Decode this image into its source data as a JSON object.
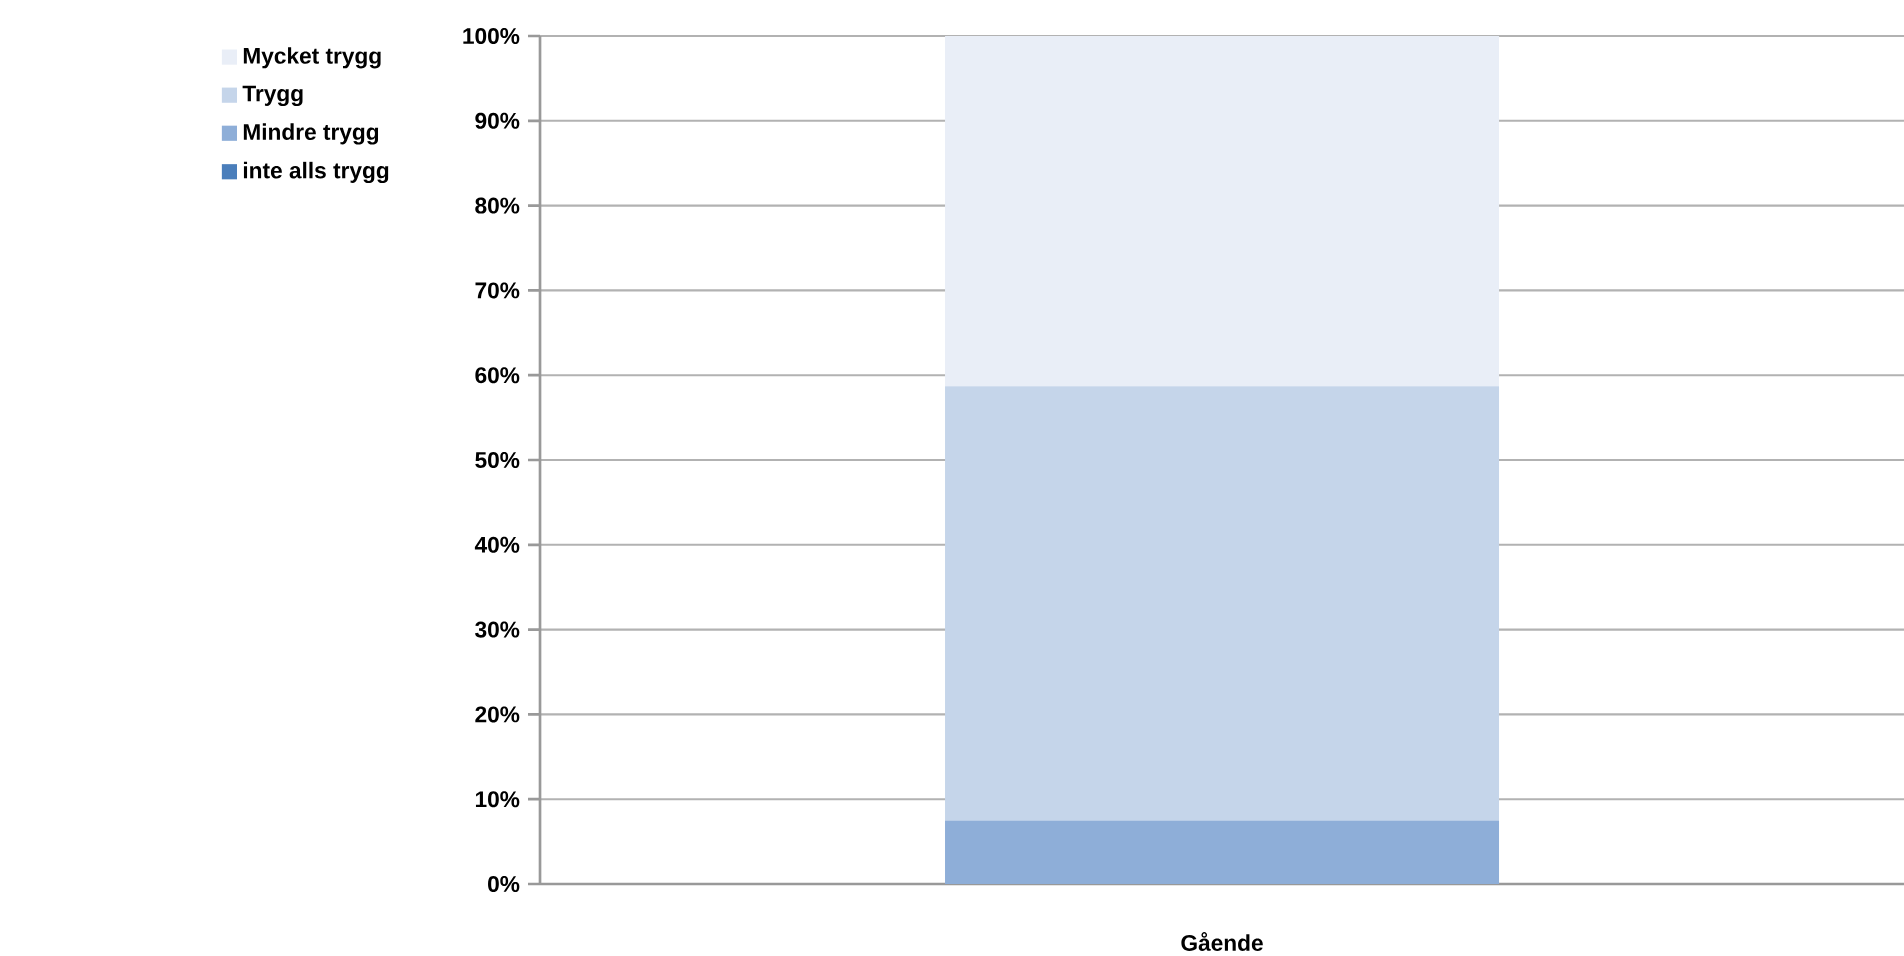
{
  "chart_data": {
    "type": "bar",
    "stacked": true,
    "categories": [
      "Gående"
    ],
    "series": [
      {
        "name": "inte alls trygg",
        "color": "#4a7ebb",
        "values": [
          0
        ]
      },
      {
        "name": "Mindre trygg",
        "color": "#8eaed8",
        "values": [
          7.5
        ]
      },
      {
        "name": "Trygg",
        "color": "#c5d5ea",
        "values": [
          51.2
        ]
      },
      {
        "name": "Mycket trygg",
        "color": "#e9eef7",
        "values": [
          41.3
        ]
      }
    ],
    "ylim": [
      0,
      100
    ],
    "yticks": [
      {
        "value": 0,
        "label": "0%"
      },
      {
        "value": 10,
        "label": "10%"
      },
      {
        "value": 20,
        "label": "20%"
      },
      {
        "value": 30,
        "label": "30%"
      },
      {
        "value": 40,
        "label": "40%"
      },
      {
        "value": 50,
        "label": "50%"
      },
      {
        "value": 60,
        "label": "60%"
      },
      {
        "value": 70,
        "label": "70%"
      },
      {
        "value": 80,
        "label": "80%"
      },
      {
        "value": 90,
        "label": "90%"
      },
      {
        "value": 100,
        "label": "100%"
      }
    ],
    "grid": "y",
    "legend": "top left"
  }
}
